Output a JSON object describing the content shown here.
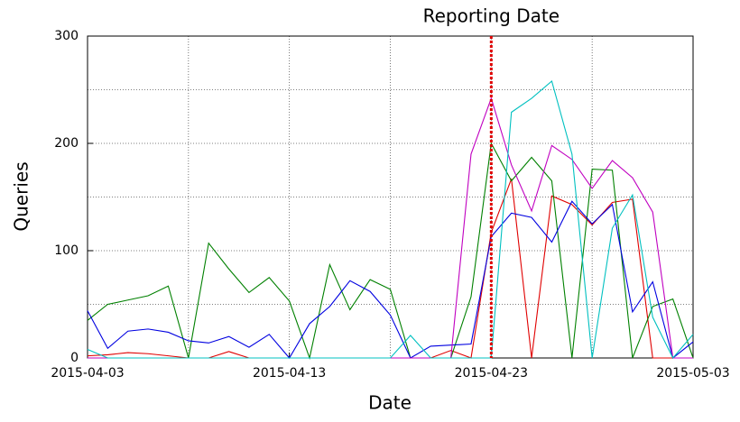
{
  "chart_data": {
    "type": "line",
    "xlabel": "Date",
    "ylabel": "Queries",
    "x": [
      "2015-04-03",
      "2015-04-04",
      "2015-04-05",
      "2015-04-06",
      "2015-04-07",
      "2015-04-08",
      "2015-04-09",
      "2015-04-10",
      "2015-04-11",
      "2015-04-12",
      "2015-04-13",
      "2015-04-14",
      "2015-04-15",
      "2015-04-16",
      "2015-04-17",
      "2015-04-18",
      "2015-04-19",
      "2015-04-20",
      "2015-04-21",
      "2015-04-22",
      "2015-04-23",
      "2015-04-24",
      "2015-04-25",
      "2015-04-26",
      "2015-04-27",
      "2015-04-28",
      "2015-04-29",
      "2015-04-30",
      "2015-05-01",
      "2015-05-02",
      "2015-05-03"
    ],
    "series": [
      {
        "color": "#e00000",
        "values": [
          2,
          3,
          5,
          4,
          2,
          0,
          0,
          6,
          0,
          0,
          0,
          0,
          0,
          0,
          0,
          0,
          0,
          0,
          7,
          0,
          117,
          167,
          0,
          151,
          143,
          124,
          145,
          148,
          0,
          0,
          0
        ]
      },
      {
        "color": "#008000",
        "values": [
          35,
          50,
          54,
          58,
          67,
          0,
          107,
          83,
          61,
          75,
          53,
          0,
          87,
          45,
          73,
          64,
          0,
          0,
          0,
          57,
          200,
          165,
          187,
          165,
          0,
          176,
          175,
          0,
          48,
          55,
          0
        ]
      },
      {
        "color": "#0000e0",
        "values": [
          44,
          9,
          25,
          27,
          24,
          16,
          14,
          20,
          10,
          22,
          0,
          32,
          48,
          72,
          62,
          40,
          0,
          11,
          12,
          13,
          113,
          135,
          131,
          108,
          146,
          125,
          143,
          43,
          71,
          0,
          15
        ]
      },
      {
        "color": "#c000c0",
        "values": [
          0,
          0,
          0,
          0,
          0,
          0,
          0,
          0,
          0,
          0,
          0,
          0,
          0,
          0,
          0,
          0,
          0,
          0,
          0,
          190,
          242,
          180,
          137,
          198,
          185,
          158,
          184,
          168,
          136,
          0,
          0
        ]
      },
      {
        "color": "#00c0c0",
        "values": [
          8,
          0,
          0,
          0,
          0,
          0,
          0,
          0,
          0,
          0,
          0,
          0,
          0,
          0,
          0,
          0,
          21,
          0,
          0,
          0,
          0,
          229,
          242,
          258,
          190,
          0,
          121,
          152,
          38,
          0,
          22
        ]
      }
    ],
    "xlim": [
      "2015-04-03",
      "2015-05-03"
    ],
    "xticks": [
      "2015-04-03",
      "2015-04-13",
      "2015-04-23",
      "2015-05-03"
    ],
    "x_minor_grid": [
      "2015-04-08",
      "2015-04-18",
      "2015-04-28"
    ],
    "ylim": [
      0,
      300
    ],
    "yticks": [
      0,
      100,
      200,
      300
    ],
    "y_minor_grid": [
      50,
      150,
      250
    ],
    "grid": true,
    "reference_line": {
      "x": "2015-04-23",
      "label": "Reporting Date",
      "color": "#e00000"
    }
  }
}
